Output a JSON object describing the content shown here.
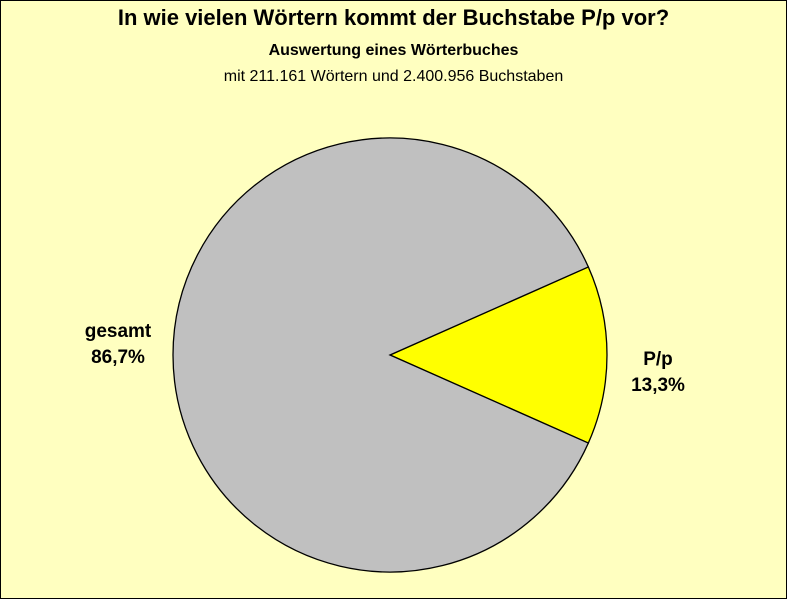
{
  "chart_data": {
    "type": "pie",
    "title": "In wie vielen Wörtern kommt der Buchstabe P/p vor?",
    "subtitle": "Auswertung eines Wörterbuches",
    "subtitle2": "mit 211.161 Wörtern und 2.400.956 Buchstaben",
    "slices": [
      {
        "label": "P/p",
        "value": 13.3,
        "value_label": "13,3%",
        "color": "#ffff00"
      },
      {
        "label": "gesamt",
        "value": 86.7,
        "value_label": "86,7%",
        "color": "#c0c0c0"
      }
    ],
    "background_color": "#ffffc0",
    "legend": "none"
  }
}
